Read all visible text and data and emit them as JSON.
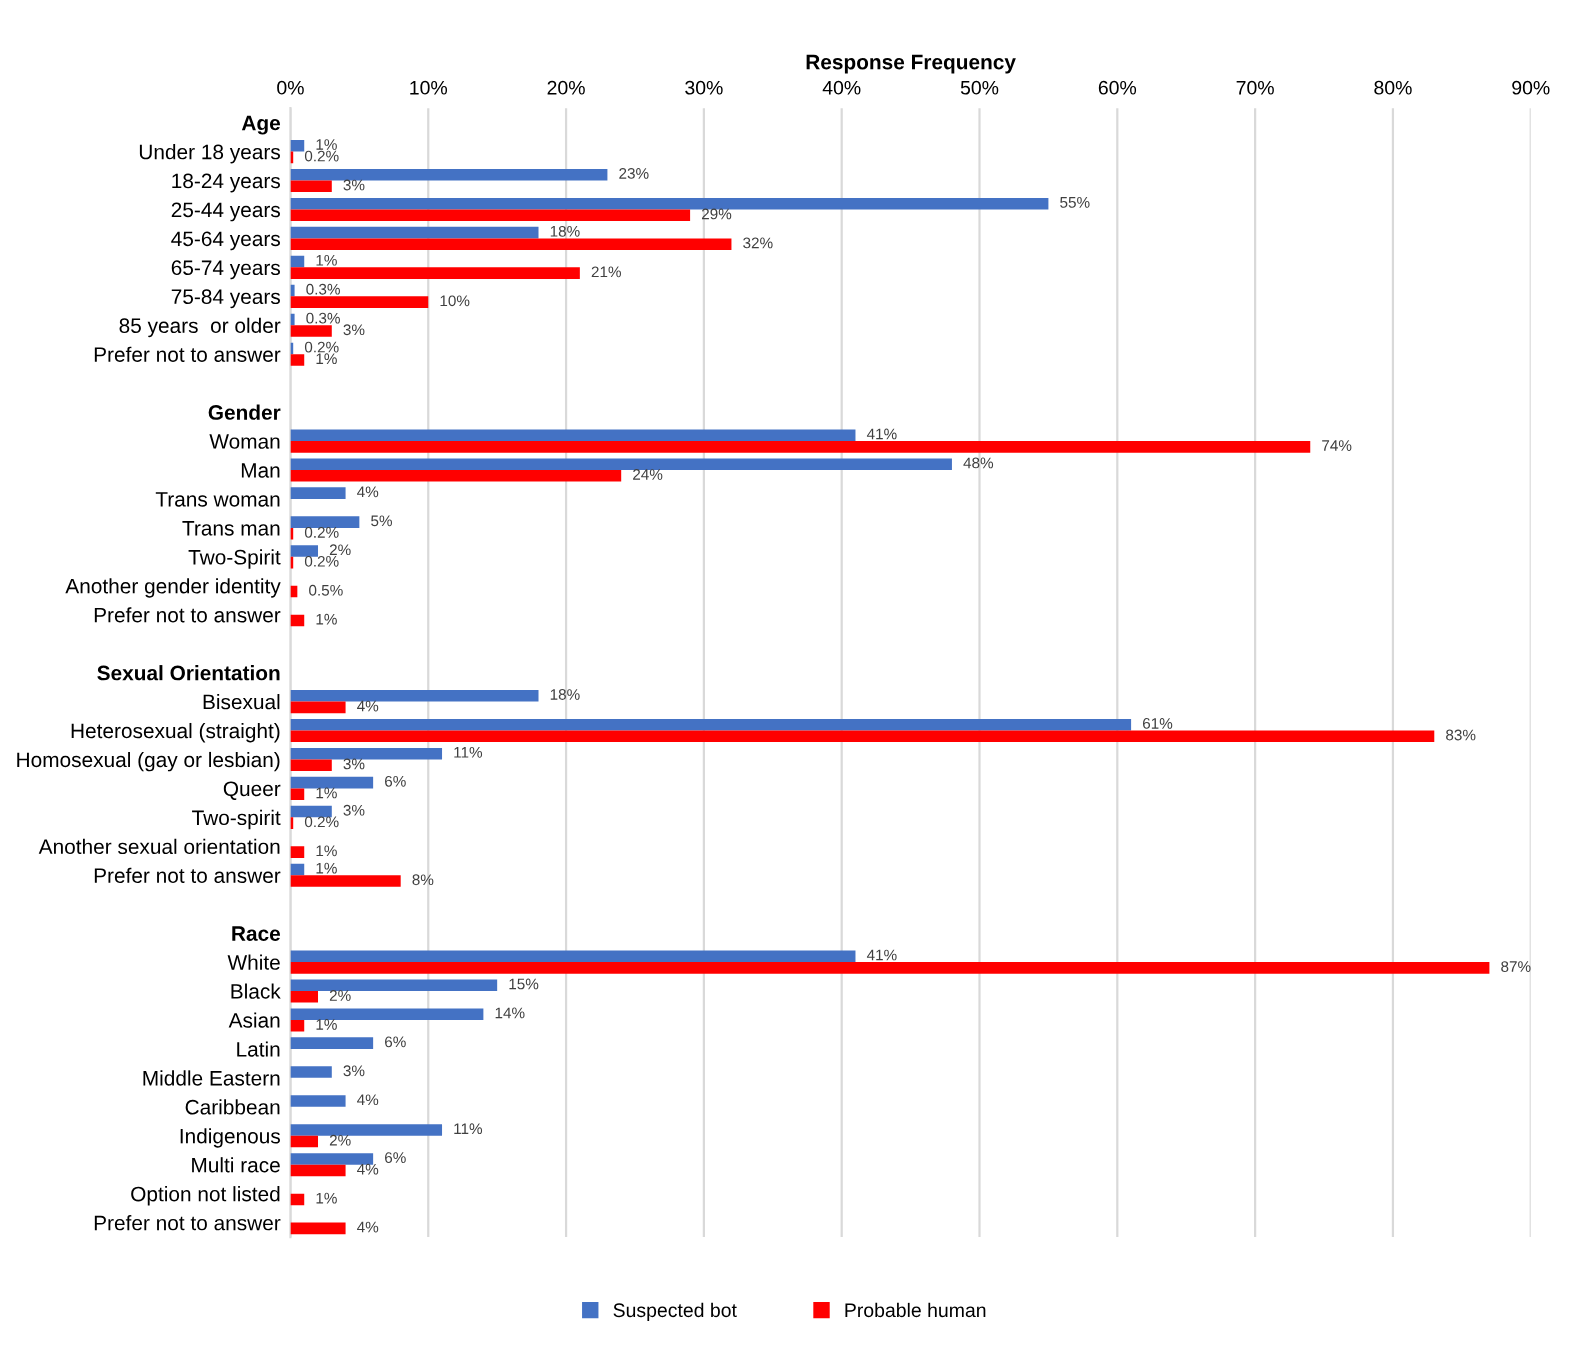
{
  "chart_data": {
    "type": "bar",
    "orientation": "horizontal",
    "xlabel": "Response Frequency",
    "categories": [
      "Age",
      "Under 18 years",
      "18-24 years",
      "25-44 years",
      "45-64 years",
      "65-74 years",
      "75-84 years",
      "85 years  or older",
      "Prefer not to answer",
      null,
      "Gender",
      "Woman",
      "Man",
      "Trans woman",
      "Trans man",
      "Two-Spirit",
      "Another gender identity",
      "Prefer not to answer",
      null,
      "Sexual Orientation",
      "Bisexual",
      "Heterosexual (straight)",
      "Homosexual (gay or lesbian)",
      "Queer",
      "Two-spirit",
      "Another sexual orientation",
      "Prefer not to answer",
      null,
      "Race",
      "White",
      "Black",
      "Asian",
      "Latin",
      "Middle Eastern",
      "Caribbean",
      "Indigenous",
      "Multi race",
      "Option not listed",
      "Prefer not to answer"
    ],
    "series": [
      {
        "name": "Suspected bot",
        "color": "#4472c4",
        "values": [
          null,
          1,
          23,
          55,
          18,
          1,
          0.3,
          0.3,
          0.2,
          null,
          null,
          41,
          48,
          4,
          5,
          2,
          null,
          null,
          null,
          null,
          18,
          61,
          11,
          6,
          3,
          null,
          1,
          null,
          null,
          41,
          15,
          14,
          6,
          3,
          4,
          11,
          6,
          null,
          null
        ],
        "value_labels": [
          null,
          "1%",
          "23%",
          "55%",
          "18%",
          "1%",
          "0.3%",
          "0.3%",
          "0.2%",
          null,
          null,
          "41%",
          "48%",
          "4%",
          "5%",
          "2%",
          null,
          null,
          null,
          null,
          "18%",
          "61%",
          "11%",
          "6%",
          "3%",
          null,
          "1%",
          null,
          null,
          "41%",
          "15%",
          "14%",
          "6%",
          "3%",
          "4%",
          "11%",
          "6%",
          null,
          null
        ]
      },
      {
        "name": "Probable human",
        "color": "#ff0000",
        "values": [
          null,
          0.2,
          3,
          29,
          32,
          21,
          10,
          3,
          1,
          null,
          null,
          74,
          24,
          null,
          0.2,
          0.2,
          0.5,
          1,
          null,
          null,
          4,
          83,
          3,
          1,
          0.2,
          1,
          8,
          null,
          null,
          87,
          2,
          1,
          null,
          null,
          null,
          2,
          4,
          1,
          4
        ],
        "value_labels": [
          null,
          "0.2%",
          "3%",
          "29%",
          "32%",
          "21%",
          "10%",
          "3%",
          "1%",
          null,
          null,
          "74%",
          "24%",
          null,
          "0.2%",
          "0.2%",
          "0.5%",
          "1%",
          null,
          null,
          "4%",
          "83%",
          "3%",
          "1%",
          "0.2%",
          "1%",
          "8%",
          null,
          null,
          "87%",
          "2%",
          "1%",
          null,
          null,
          null,
          "2%",
          "4%",
          "1%",
          "4%"
        ]
      }
    ],
    "xlim": [
      0,
      90
    ],
    "xticks": [
      {
        "value": 0,
        "label": "0%"
      },
      {
        "value": 10,
        "label": "10%"
      },
      {
        "value": 20,
        "label": "20%"
      },
      {
        "value": 30,
        "label": "30%"
      },
      {
        "value": 40,
        "label": "40%"
      },
      {
        "value": 50,
        "label": "50%"
      },
      {
        "value": 60,
        "label": "60%"
      },
      {
        "value": 70,
        "label": "70%"
      },
      {
        "value": 80,
        "label": "80%"
      },
      {
        "value": 90,
        "label": "90%"
      }
    ],
    "grid": "x",
    "legend": "bottom"
  }
}
